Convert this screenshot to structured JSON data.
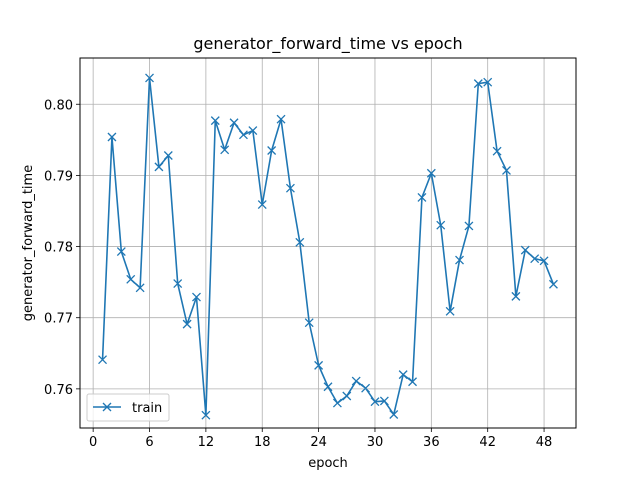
{
  "chart_data": {
    "type": "line",
    "title": "generator_forward_time vs epoch",
    "xlabel": "epoch",
    "ylabel": "generator_forward_time",
    "xlim": [
      -1.4,
      51.4
    ],
    "ylim": [
      0.7545,
      0.8065
    ],
    "xticks": [
      0,
      6,
      12,
      18,
      24,
      30,
      36,
      42,
      48
    ],
    "yticks": [
      0.76,
      0.77,
      0.78,
      0.79,
      0.8
    ],
    "ytick_labels": [
      "0.76",
      "0.77",
      "0.78",
      "0.79",
      "0.80"
    ],
    "grid": true,
    "legend_position": "lower-left",
    "marker": "x",
    "series": [
      {
        "name": "train",
        "color": "#1f77b4",
        "x": [
          1,
          2,
          3,
          4,
          5,
          6,
          7,
          8,
          9,
          10,
          11,
          12,
          13,
          14,
          15,
          16,
          17,
          18,
          19,
          20,
          21,
          22,
          23,
          24,
          25,
          26,
          27,
          28,
          29,
          30,
          31,
          32,
          33,
          34,
          35,
          36,
          37,
          38,
          39,
          40,
          41,
          42,
          43,
          44,
          45,
          46,
          47,
          48,
          49
        ],
        "values": [
          0.7641,
          0.7954,
          0.7793,
          0.7754,
          0.7742,
          0.8037,
          0.7912,
          0.7928,
          0.7748,
          0.7691,
          0.7729,
          0.7563,
          0.7977,
          0.7936,
          0.7974,
          0.7957,
          0.7963,
          0.7859,
          0.7935,
          0.7979,
          0.7882,
          0.7806,
          0.7693,
          0.7633,
          0.7603,
          0.758,
          0.759,
          0.7611,
          0.7601,
          0.7582,
          0.7583,
          0.7564,
          0.762,
          0.761,
          0.7869,
          0.7903,
          0.783,
          0.7709,
          0.7781,
          0.7829,
          0.8029,
          0.8031,
          0.7934,
          0.7907,
          0.773,
          0.7795,
          0.7783,
          0.778,
          0.7747
        ]
      }
    ]
  }
}
